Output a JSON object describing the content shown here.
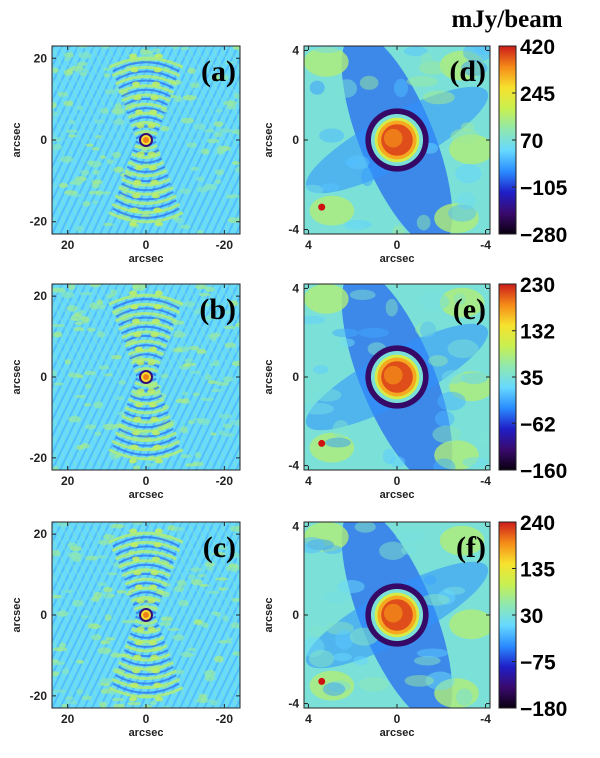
{
  "chart_data": {
    "type": "heatmap",
    "colorbar_unit": "mJy/beam",
    "colormap": [
      "#0a0010",
      "#3a0a6e",
      "#1f1fc8",
      "#2a8cff",
      "#66d9ff",
      "#8fe8b0",
      "#c8f050",
      "#f7e22e",
      "#f58a18",
      "#cc1b1b"
    ],
    "panels": [
      {
        "label": "(a)",
        "xlabel": "arcsec",
        "ylabel": "arcsec",
        "xlim": [
          24,
          -24
        ],
        "ylim": [
          -23,
          23
        ],
        "xticks": [
          20,
          0,
          -20
        ],
        "yticks": [
          20,
          0,
          -20
        ],
        "pattern": "wide-field: central bright source with symmetric arc-shaped sidelobes along the vertical axis",
        "source": [
          0,
          0
        ]
      },
      {
        "label": "(d)",
        "xlabel": "arcsec",
        "ylabel": "arcsec",
        "xlim": [
          4.2,
          -4.2
        ],
        "ylim": [
          -4.2,
          4.2
        ],
        "xticks": [
          4,
          0,
          -4
        ],
        "yticks": [
          4,
          0,
          -4
        ],
        "colorbar_ticks": [
          420,
          245,
          70,
          -105,
          -280
        ],
        "colorbar_range": [
          -280,
          420
        ],
        "pattern": "zoom: ring-like bright source at center, beam marker lower left",
        "beam_marker": [
          3.4,
          -3
        ]
      },
      {
        "label": "(b)",
        "xlabel": "arcsec",
        "ylabel": "arcsec",
        "xlim": [
          24,
          -24
        ],
        "ylim": [
          -23,
          23
        ],
        "xticks": [
          20,
          0,
          -20
        ],
        "yticks": [
          20,
          0,
          -20
        ],
        "pattern": "wide-field: central bright source with arc-shaped sidelobes",
        "source": [
          0,
          0
        ]
      },
      {
        "label": "(e)",
        "xlabel": "arcsec",
        "ylabel": "arcsec",
        "xlim": [
          4.2,
          -4.2
        ],
        "ylim": [
          -4.2,
          4.2
        ],
        "xticks": [
          4,
          0,
          -4
        ],
        "yticks": [
          4,
          0,
          -4
        ],
        "colorbar_ticks": [
          230,
          132,
          35,
          -62,
          -160
        ],
        "colorbar_range": [
          -160,
          230
        ],
        "pattern": "zoom: ring-like bright source at center, beam marker lower left",
        "beam_marker": [
          3.4,
          -3
        ]
      },
      {
        "label": "(c)",
        "xlabel": "arcsec",
        "ylabel": "arcsec",
        "xlim": [
          24,
          -24
        ],
        "ylim": [
          -23,
          23
        ],
        "xticks": [
          20,
          0,
          -20
        ],
        "yticks": [
          20,
          0,
          -20
        ],
        "pattern": "wide-field: central bright source with arc-shaped sidelobes",
        "source": [
          0,
          0
        ]
      },
      {
        "label": "(f)",
        "xlabel": "arcsec",
        "ylabel": "arcsec",
        "xlim": [
          4.2,
          -4.2
        ],
        "ylim": [
          -4.2,
          4.2
        ],
        "xticks": [
          4,
          0,
          -4
        ],
        "yticks": [
          4,
          0,
          -4
        ],
        "colorbar_ticks": [
          240,
          135,
          30,
          -75,
          -180
        ],
        "colorbar_range": [
          -180,
          240
        ],
        "pattern": "zoom: ring-like bright source at center, beam marker lower left",
        "beam_marker": [
          3.4,
          -3
        ]
      }
    ]
  }
}
